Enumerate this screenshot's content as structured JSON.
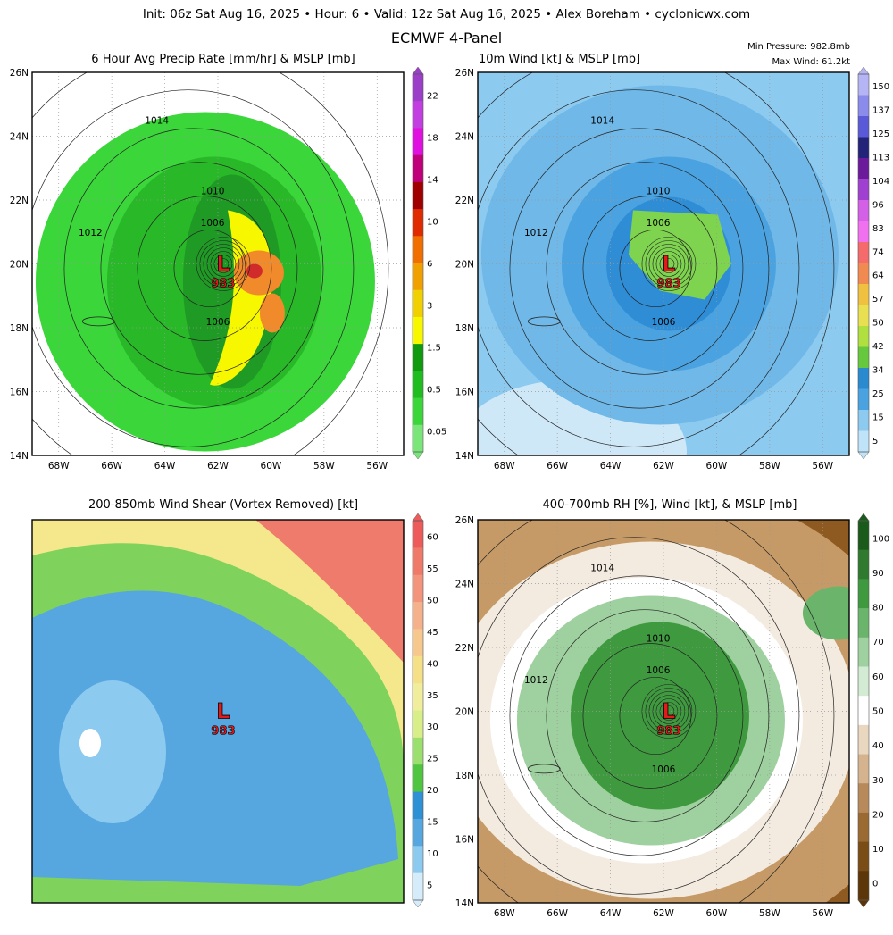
{
  "header": {
    "info_line": "Init: 06z Sat Aug 16, 2025 • Hour: 6 • Valid: 12z Sat Aug 16, 2025 • Alex Boreham • cyclonicwx.com",
    "title": "ECMWF 4-Panel",
    "min_pressure": "Min Pressure: 982.8mb",
    "max_wind": "Max Wind: 61.2kt"
  },
  "colors": {
    "precip_green": "#3ad63a",
    "precip_dark": "#1f9a24",
    "precip_yellow": "#f7f700",
    "precip_orange": "#f08a2a",
    "wind_light": "#8ccaf0",
    "wind_mid": "#4aa3e0",
    "wind_green": "#7ed34f",
    "shear_blue": "#56a6df",
    "shear_yellow": "#f5e88c",
    "shear_red": "#ee7b6c",
    "rh_brown": "#8e5a22",
    "rh_green": "#3f9a3f",
    "low_marker": "#e31a1c"
  },
  "chart_data": [
    {
      "type": "heatmap",
      "panel": "precip",
      "title": "6 Hour Avg Precip Rate [mm/hr] & MSLP [mb]",
      "lat_ticks": [
        "26N",
        "24N",
        "22N",
        "20N",
        "18N",
        "16N",
        "14N"
      ],
      "lon_ticks": [
        "68W",
        "66W",
        "64W",
        "62W",
        "60W",
        "58W",
        "56W"
      ],
      "xlim": [
        -69,
        -55
      ],
      "ylim": [
        14,
        26
      ],
      "colorbar_labels": [
        "22",
        "18",
        "14",
        "10",
        "6",
        "3",
        "1.5",
        "0.5",
        "0.05"
      ],
      "contours": [
        {
          "label": "1014",
          "lon": -64.3,
          "lat": 24.5
        },
        {
          "label": "1012",
          "lon": -66.8,
          "lat": 21.0
        },
        {
          "label": "1010",
          "lon": -62.2,
          "lat": 22.3
        },
        {
          "label": "1006",
          "lon": -62.2,
          "lat": 21.3
        },
        {
          "label": "1006",
          "lon": -62.0,
          "lat": 18.2
        }
      ],
      "low": {
        "symbol": "L",
        "pressure": "983",
        "lon": -61.8,
        "lat": 20.0
      }
    },
    {
      "type": "heatmap",
      "panel": "wind",
      "title": "10m Wind [kt] & MSLP [mb]",
      "lat_ticks": [
        "26N",
        "24N",
        "22N",
        "20N",
        "18N",
        "16N",
        "14N"
      ],
      "lon_ticks": [
        "68W",
        "66W",
        "64W",
        "62W",
        "60W",
        "58W",
        "56W"
      ],
      "xlim": [
        -69,
        -55
      ],
      "ylim": [
        14,
        26
      ],
      "colorbar_labels": [
        "150",
        "137",
        "125",
        "113",
        "104",
        "96",
        "83",
        "74",
        "64",
        "57",
        "50",
        "42",
        "34",
        "25",
        "15",
        "5"
      ],
      "contours": [
        {
          "label": "1014",
          "lon": -64.3,
          "lat": 24.5
        },
        {
          "label": "1012",
          "lon": -66.8,
          "lat": 21.0
        },
        {
          "label": "1010",
          "lon": -62.2,
          "lat": 22.3
        },
        {
          "label": "1006",
          "lon": -62.2,
          "lat": 21.3
        },
        {
          "label": "1006",
          "lon": -62.0,
          "lat": 18.2
        }
      ],
      "low": {
        "symbol": "L",
        "pressure": "983",
        "lon": -61.8,
        "lat": 20.0
      }
    },
    {
      "type": "heatmap",
      "panel": "shear",
      "title": "200-850mb Wind Shear (Vortex Removed) [kt]",
      "colorbar_labels": [
        "60",
        "55",
        "50",
        "45",
        "40",
        "35",
        "30",
        "25",
        "20",
        "15",
        "10",
        "5"
      ],
      "low": {
        "symbol": "L",
        "pressure": "983",
        "lon": -61.8,
        "lat": 20.0
      }
    },
    {
      "type": "heatmap",
      "panel": "rh",
      "title": "400-700mb RH [%], Wind [kt], & MSLP [mb]",
      "lat_ticks": [
        "26N",
        "24N",
        "22N",
        "20N",
        "18N",
        "16N",
        "14N"
      ],
      "lon_ticks": [
        "68W",
        "66W",
        "64W",
        "62W",
        "60W",
        "58W",
        "56W"
      ],
      "xlim": [
        -69,
        -55
      ],
      "ylim": [
        14,
        26
      ],
      "colorbar_labels": [
        "100",
        "90",
        "80",
        "70",
        "60",
        "50",
        "40",
        "30",
        "20",
        "10",
        "0"
      ],
      "contours": [
        {
          "label": "1014",
          "lon": -64.3,
          "lat": 24.5
        },
        {
          "label": "1012",
          "lon": -66.8,
          "lat": 21.0
        },
        {
          "label": "1010",
          "lon": -62.2,
          "lat": 22.3
        },
        {
          "label": "1006",
          "lon": -62.2,
          "lat": 21.3
        },
        {
          "label": "1006",
          "lon": -62.0,
          "lat": 18.2
        }
      ],
      "low": {
        "symbol": "L",
        "pressure": "983",
        "lon": -61.8,
        "lat": 20.0
      }
    }
  ]
}
